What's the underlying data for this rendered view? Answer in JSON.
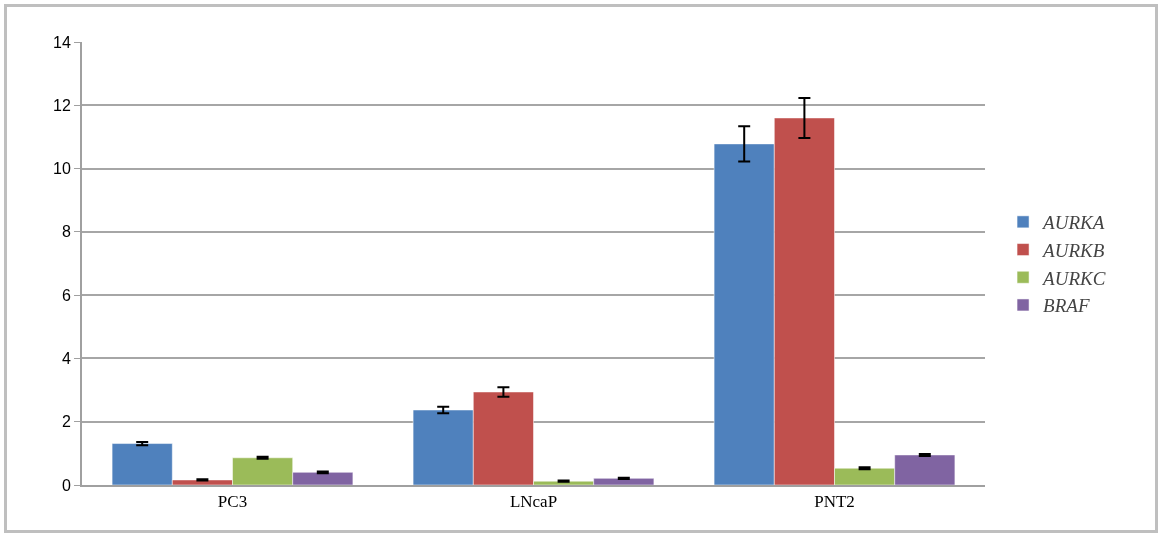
{
  "chart_data": {
    "type": "bar",
    "categories": [
      "PC3",
      "LNcaP",
      "PNT2"
    ],
    "series": [
      {
        "name": "AURKA",
        "color": "#4f81bd",
        "values": [
          1.31,
          2.37,
          10.78
        ],
        "errors": [
          0.05,
          0.1,
          0.56
        ]
      },
      {
        "name": "AURKB",
        "color": "#c0504d",
        "values": [
          0.16,
          2.94,
          11.6
        ],
        "errors": [
          0.02,
          0.15,
          0.63
        ]
      },
      {
        "name": "AURKC",
        "color": "#9bbb59",
        "values": [
          0.86,
          0.12,
          0.53
        ],
        "errors": [
          0.03,
          0.02,
          0.03
        ]
      },
      {
        "name": "BRAF",
        "color": "#8064a2",
        "values": [
          0.4,
          0.21,
          0.95
        ],
        "errors": [
          0.03,
          0.02,
          0.03
        ]
      }
    ],
    "ylim": [
      0,
      14
    ],
    "yticks": [
      0,
      2,
      4,
      6,
      8,
      10,
      12,
      14
    ],
    "grid": "y",
    "legend": "right"
  }
}
